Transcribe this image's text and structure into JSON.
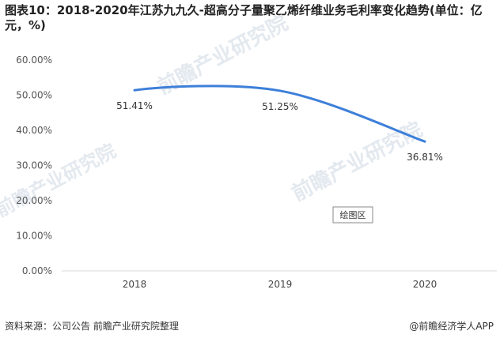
{
  "title": "图表10：2018-2020年江苏九九久-超高分子量聚乙烯纤维业务毛利率变化趋势(单位：亿元，%)",
  "chart_data": {
    "type": "line",
    "categories": [
      "2018",
      "2019",
      "2020"
    ],
    "series": [
      {
        "values": [
          51.41,
          51.25,
          36.81
        ],
        "labels": [
          "51.41%",
          "51.25%",
          "36.81%"
        ]
      }
    ],
    "y_ticks": [
      "0.00%",
      "10.00%",
      "20.00%",
      "30.00%",
      "40.00%",
      "50.00%",
      "60.00%"
    ],
    "ylim": [
      0,
      60
    ],
    "line_color": "#3d7fd9",
    "smooth": true,
    "grid": false
  },
  "plot_area_label": "绘图区",
  "watermark_text": "前瞻产业研究院",
  "footer": {
    "source": "资料来源：公司公告 前瞻产业研究院整理",
    "brand": "@前瞻经济学人APP"
  }
}
